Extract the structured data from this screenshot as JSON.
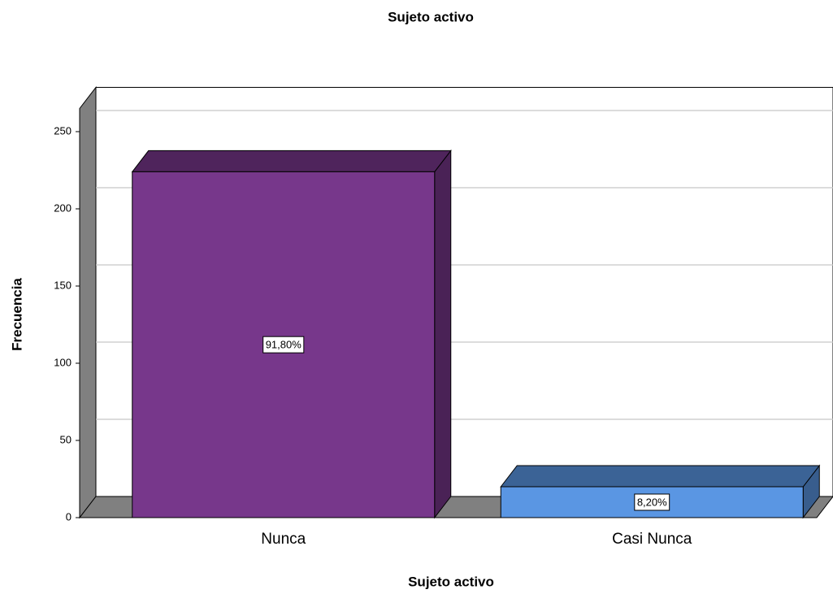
{
  "chart_data": {
    "type": "bar3d",
    "title": "Sujeto activo",
    "x_label": "Sujeto activo",
    "y_label": "Frecuencia",
    "categories": [
      "Nunca",
      "Casi Nunca"
    ],
    "values": [
      224,
      20
    ],
    "data_labels": [
      "91,80%",
      "8,20%"
    ],
    "colors": [
      "#77378b",
      "#5a96e3"
    ],
    "ylim": [
      0,
      265
    ],
    "yticks": [
      0,
      50,
      100,
      150,
      200,
      250
    ],
    "grid": true
  }
}
